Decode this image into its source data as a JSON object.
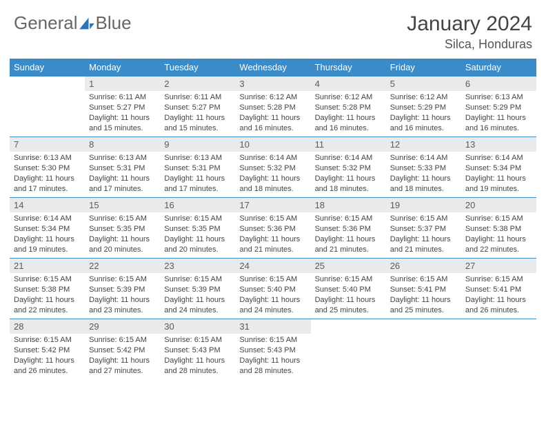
{
  "brand": {
    "part1": "General",
    "part2": "Blue"
  },
  "title": "January 2024",
  "location": "Silca, Honduras",
  "colors": {
    "header_bg": "#3b8bc9",
    "header_text": "#ffffff",
    "daynum_bg": "#e9eaec",
    "daynum_text": "#5a5a5a",
    "border": "#3b8bc9",
    "body_text": "#444444",
    "logo_accent": "#2d74b5"
  },
  "weekdays": [
    "Sunday",
    "Monday",
    "Tuesday",
    "Wednesday",
    "Thursday",
    "Friday",
    "Saturday"
  ],
  "first_weekday_index": 1,
  "days": [
    {
      "n": 1,
      "sunrise": "6:11 AM",
      "sunset": "5:27 PM",
      "daylight": "11 hours and 15 minutes."
    },
    {
      "n": 2,
      "sunrise": "6:11 AM",
      "sunset": "5:27 PM",
      "daylight": "11 hours and 15 minutes."
    },
    {
      "n": 3,
      "sunrise": "6:12 AM",
      "sunset": "5:28 PM",
      "daylight": "11 hours and 16 minutes."
    },
    {
      "n": 4,
      "sunrise": "6:12 AM",
      "sunset": "5:28 PM",
      "daylight": "11 hours and 16 minutes."
    },
    {
      "n": 5,
      "sunrise": "6:12 AM",
      "sunset": "5:29 PM",
      "daylight": "11 hours and 16 minutes."
    },
    {
      "n": 6,
      "sunrise": "6:13 AM",
      "sunset": "5:29 PM",
      "daylight": "11 hours and 16 minutes."
    },
    {
      "n": 7,
      "sunrise": "6:13 AM",
      "sunset": "5:30 PM",
      "daylight": "11 hours and 17 minutes."
    },
    {
      "n": 8,
      "sunrise": "6:13 AM",
      "sunset": "5:31 PM",
      "daylight": "11 hours and 17 minutes."
    },
    {
      "n": 9,
      "sunrise": "6:13 AM",
      "sunset": "5:31 PM",
      "daylight": "11 hours and 17 minutes."
    },
    {
      "n": 10,
      "sunrise": "6:14 AM",
      "sunset": "5:32 PM",
      "daylight": "11 hours and 18 minutes."
    },
    {
      "n": 11,
      "sunrise": "6:14 AM",
      "sunset": "5:32 PM",
      "daylight": "11 hours and 18 minutes."
    },
    {
      "n": 12,
      "sunrise": "6:14 AM",
      "sunset": "5:33 PM",
      "daylight": "11 hours and 18 minutes."
    },
    {
      "n": 13,
      "sunrise": "6:14 AM",
      "sunset": "5:34 PM",
      "daylight": "11 hours and 19 minutes."
    },
    {
      "n": 14,
      "sunrise": "6:14 AM",
      "sunset": "5:34 PM",
      "daylight": "11 hours and 19 minutes."
    },
    {
      "n": 15,
      "sunrise": "6:15 AM",
      "sunset": "5:35 PM",
      "daylight": "11 hours and 20 minutes."
    },
    {
      "n": 16,
      "sunrise": "6:15 AM",
      "sunset": "5:35 PM",
      "daylight": "11 hours and 20 minutes."
    },
    {
      "n": 17,
      "sunrise": "6:15 AM",
      "sunset": "5:36 PM",
      "daylight": "11 hours and 21 minutes."
    },
    {
      "n": 18,
      "sunrise": "6:15 AM",
      "sunset": "5:36 PM",
      "daylight": "11 hours and 21 minutes."
    },
    {
      "n": 19,
      "sunrise": "6:15 AM",
      "sunset": "5:37 PM",
      "daylight": "11 hours and 21 minutes."
    },
    {
      "n": 20,
      "sunrise": "6:15 AM",
      "sunset": "5:38 PM",
      "daylight": "11 hours and 22 minutes."
    },
    {
      "n": 21,
      "sunrise": "6:15 AM",
      "sunset": "5:38 PM",
      "daylight": "11 hours and 22 minutes."
    },
    {
      "n": 22,
      "sunrise": "6:15 AM",
      "sunset": "5:39 PM",
      "daylight": "11 hours and 23 minutes."
    },
    {
      "n": 23,
      "sunrise": "6:15 AM",
      "sunset": "5:39 PM",
      "daylight": "11 hours and 24 minutes."
    },
    {
      "n": 24,
      "sunrise": "6:15 AM",
      "sunset": "5:40 PM",
      "daylight": "11 hours and 24 minutes."
    },
    {
      "n": 25,
      "sunrise": "6:15 AM",
      "sunset": "5:40 PM",
      "daylight": "11 hours and 25 minutes."
    },
    {
      "n": 26,
      "sunrise": "6:15 AM",
      "sunset": "5:41 PM",
      "daylight": "11 hours and 25 minutes."
    },
    {
      "n": 27,
      "sunrise": "6:15 AM",
      "sunset": "5:41 PM",
      "daylight": "11 hours and 26 minutes."
    },
    {
      "n": 28,
      "sunrise": "6:15 AM",
      "sunset": "5:42 PM",
      "daylight": "11 hours and 26 minutes."
    },
    {
      "n": 29,
      "sunrise": "6:15 AM",
      "sunset": "5:42 PM",
      "daylight": "11 hours and 27 minutes."
    },
    {
      "n": 30,
      "sunrise": "6:15 AM",
      "sunset": "5:43 PM",
      "daylight": "11 hours and 28 minutes."
    },
    {
      "n": 31,
      "sunrise": "6:15 AM",
      "sunset": "5:43 PM",
      "daylight": "11 hours and 28 minutes."
    }
  ],
  "labels": {
    "sunrise": "Sunrise:",
    "sunset": "Sunset:",
    "daylight": "Daylight:"
  }
}
